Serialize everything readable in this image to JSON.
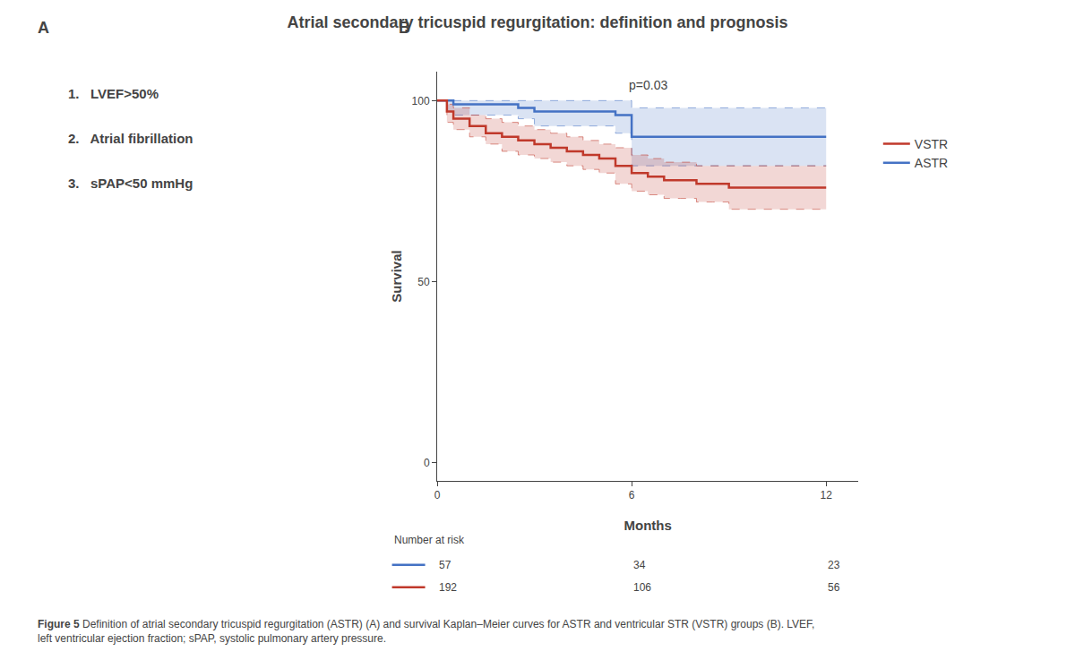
{
  "chart_data": {
    "type": "step",
    "title": "Atrial secondary tricuspid regurgitation: definition and prognosis",
    "x_label": "Months",
    "y_label": "Survival",
    "xlim": [
      0,
      13
    ],
    "ylim": [
      -5,
      108
    ],
    "xticks": [
      0,
      6,
      12
    ],
    "yticks": [
      0,
      50,
      100
    ],
    "grid": false,
    "legend": "right",
    "series": [
      {
        "name": "ASTR",
        "color": "#4472c4",
        "x": [
          0,
          0.3,
          0.5,
          1.0,
          1.5,
          2.0,
          2.5,
          3.0,
          3.5,
          4.0,
          4.5,
          5.0,
          5.5,
          6.0,
          6.5,
          7.0,
          8.0,
          9.0,
          10.0,
          11.0,
          12.0
        ],
        "values": [
          100,
          100,
          99,
          99,
          99,
          99,
          98,
          97,
          97,
          97,
          97,
          97,
          96,
          90,
          90,
          90,
          90,
          90,
          90,
          90,
          90
        ],
        "upper": [
          100,
          100,
          100,
          100,
          100,
          100,
          100,
          100,
          100,
          100,
          100,
          100,
          100,
          98,
          98,
          98,
          98,
          98,
          98,
          98,
          98
        ],
        "lower": [
          100,
          97,
          96,
          96,
          96,
          96,
          95,
          93,
          93,
          93,
          93,
          93,
          91,
          82,
          82,
          82,
          82,
          82,
          82,
          82,
          82
        ]
      },
      {
        "name": "VSTR",
        "color": "#c0392b",
        "x": [
          0,
          0.3,
          0.5,
          1.0,
          1.5,
          2.0,
          2.5,
          3.0,
          3.5,
          4.0,
          4.5,
          5.0,
          5.5,
          6.0,
          6.5,
          7.0,
          7.5,
          8.0,
          8.5,
          9.0,
          9.5,
          10.0,
          10.5,
          11.0,
          11.5,
          12.0
        ],
        "values": [
          100,
          97,
          95,
          93,
          91,
          90,
          89,
          88,
          87,
          86,
          85,
          84,
          82,
          80,
          79,
          78,
          78,
          77,
          77,
          76,
          76,
          76,
          76,
          76,
          76,
          76
        ],
        "upper": [
          100,
          99,
          98,
          96,
          95,
          94,
          93,
          92,
          91,
          90,
          89,
          88,
          87,
          85,
          84,
          83,
          83,
          82,
          82,
          82,
          82,
          82,
          82,
          82,
          82,
          82
        ],
        "lower": [
          100,
          94,
          92,
          90,
          88,
          86,
          85,
          84,
          83,
          82,
          81,
          80,
          77,
          75,
          74,
          73,
          73,
          72,
          72,
          70,
          70,
          70,
          70,
          70,
          70,
          70
        ]
      }
    ],
    "number_at_risk": {
      "label": "Number at risk",
      "x": [
        0,
        6,
        12
      ],
      "series": [
        {
          "name": "ASTR",
          "values": [
            57,
            34,
            23
          ]
        },
        {
          "name": "VSTR",
          "values": [
            192,
            106,
            56
          ]
        }
      ]
    },
    "annotations": {
      "panel_a": "A",
      "panel_b": "B",
      "criteria": [
        "1.   LVEF>50%",
        "2.   Atrial fibrillation",
        "3.   sPAP<50 mmHg"
      ],
      "p_value": "p=0.03",
      "caption_bold": "Figure 5",
      "caption": "Definition of atrial secondary tricuspid regurgitation (ASTR) (A) and survival Kaplan–Meier curves for ASTR and ventricular STR (VSTR) groups (B). LVEF, left ventricular ejection fraction; sPAP, systolic pulmonary artery pressure."
    }
  }
}
